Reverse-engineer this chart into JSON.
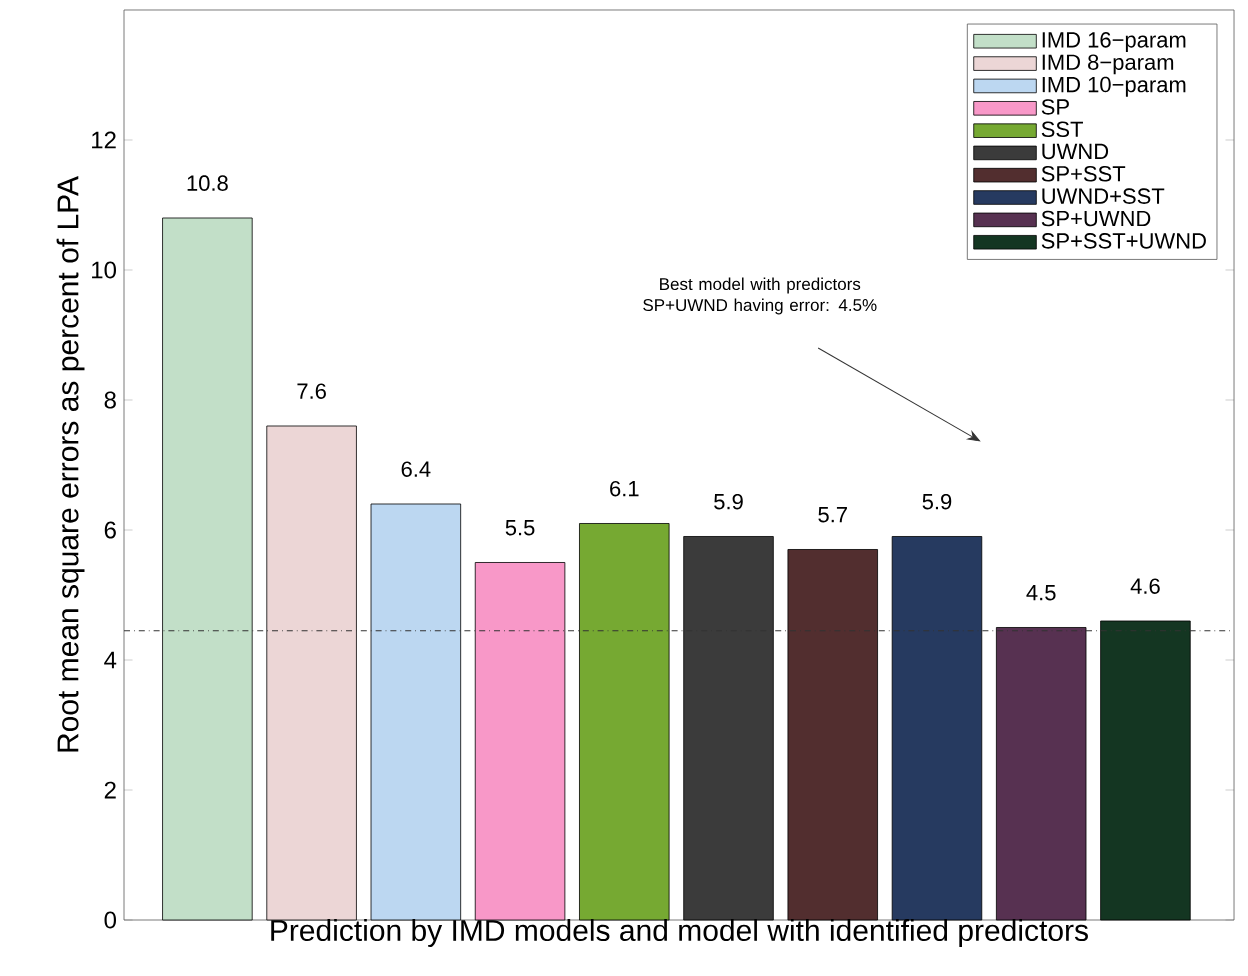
{
  "chart_data": {
    "type": "bar",
    "xlabel": "Prediction by IMD models and model with identified predictors",
    "ylabel": "Root mean square errors as percent of LPA",
    "categories": [
      null,
      null,
      null,
      null,
      null,
      null,
      null,
      null,
      null,
      null
    ],
    "series": [
      {
        "name": "IMD 16−param",
        "color": "#c2dfc8",
        "values": [
          10.8,
          null,
          null,
          null,
          null,
          null,
          null,
          null,
          null,
          null
        ]
      },
      {
        "name": "IMD 8−param",
        "color": "#ecd6d6",
        "values": [
          null,
          7.6,
          null,
          null,
          null,
          null,
          null,
          null,
          null,
          null
        ]
      },
      {
        "name": "IMD 10−param",
        "color": "#bcd7f1",
        "values": [
          null,
          null,
          6.4,
          null,
          null,
          null,
          null,
          null,
          null,
          null
        ]
      },
      {
        "name": "SP",
        "color": "#f898c8",
        "values": [
          null,
          null,
          null,
          5.5,
          null,
          null,
          null,
          null,
          null,
          null
        ]
      },
      {
        "name": "SST",
        "color": "#76a932",
        "values": [
          null,
          null,
          null,
          null,
          6.1,
          null,
          null,
          null,
          null,
          null
        ]
      },
      {
        "name": "UWND",
        "color": "#3b3b3b",
        "values": [
          null,
          null,
          null,
          null,
          null,
          5.9,
          null,
          null,
          null,
          null
        ]
      },
      {
        "name": "SP+SST",
        "color": "#522e2f",
        "values": [
          null,
          null,
          null,
          null,
          null,
          null,
          5.7,
          null,
          null,
          null
        ]
      },
      {
        "name": "UWND+SST",
        "color": "#263a60",
        "values": [
          null,
          null,
          null,
          null,
          null,
          null,
          null,
          5.9,
          null,
          null
        ]
      },
      {
        "name": "SP+UWND",
        "color": "#573151",
        "values": [
          null,
          null,
          null,
          null,
          null,
          null,
          null,
          null,
          4.5,
          null
        ]
      },
      {
        "name": "SP+SST+UWND",
        "color": "#143622",
        "values": [
          null,
          null,
          null,
          null,
          null,
          null,
          null,
          null,
          null,
          4.6
        ]
      }
    ],
    "ylim": [
      0,
      14
    ],
    "yticks": [
      0,
      2,
      4,
      6,
      8,
      10,
      12
    ],
    "tick_labels": "y",
    "data_labels": true,
    "legend": "top right",
    "ref_lines": [
      {
        "axis": "y",
        "value": 4.45,
        "color": "#333333",
        "line_style": "dashdot"
      }
    ],
    "annotations": [
      "Best model with predictors SP+UWND having error: 4.5%"
    ]
  }
}
